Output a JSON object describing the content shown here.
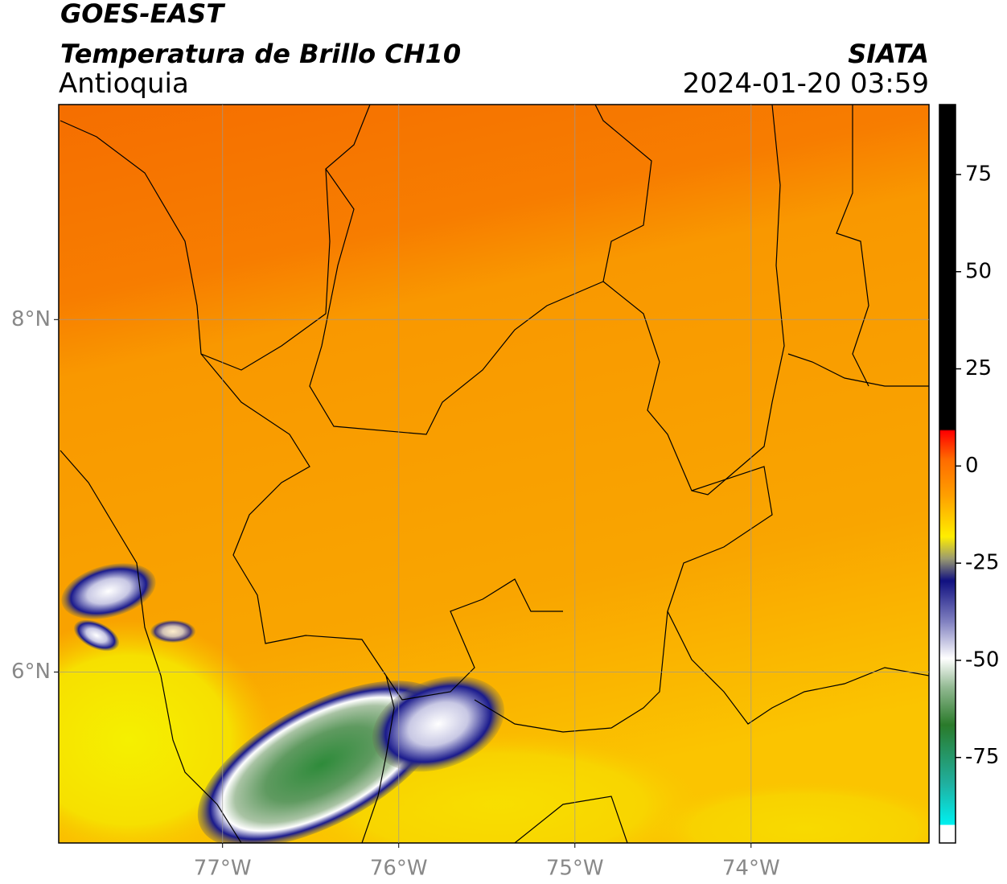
{
  "header": {
    "satellite": "GOES-EAST",
    "product": "Temperatura de Brillo CH10",
    "region": "Antioquia",
    "source": "SIATA",
    "datetime": "2024-01-20 03:59"
  },
  "map": {
    "xlim": [
      -77.93,
      -72.99
    ],
    "ylim": [
      5.03,
      9.22
    ],
    "xticks": [
      {
        "value": -77,
        "label": "77°W"
      },
      {
        "value": -76,
        "label": "76°W"
      },
      {
        "value": -75,
        "label": "75°W"
      },
      {
        "value": -74,
        "label": "74°W"
      }
    ],
    "yticks": [
      {
        "value": 8,
        "label": "8°N"
      },
      {
        "value": 6,
        "label": "6°N"
      }
    ],
    "grid": true
  },
  "colorbar": {
    "lim": [
      -97,
      93
    ],
    "ticks": [
      75,
      50,
      25,
      0,
      -25,
      -50,
      -75
    ]
  }
}
